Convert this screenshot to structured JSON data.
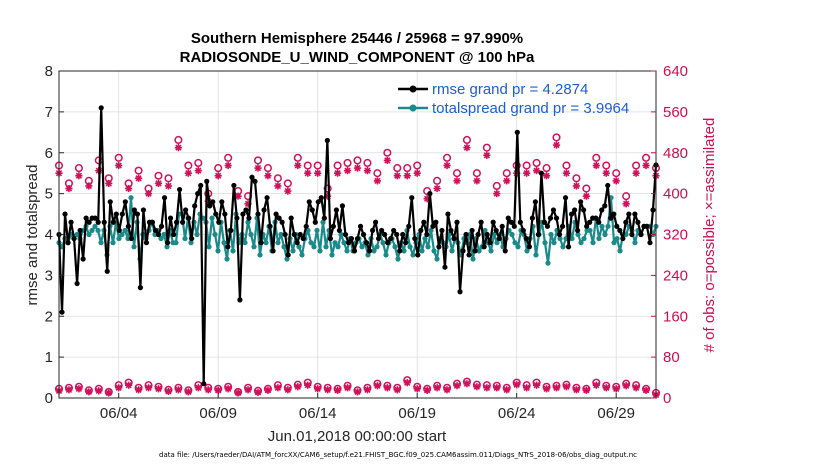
{
  "chart_data": {
    "type": "line",
    "title": "Southern Hemisphere 25446 / 25968 = 97.990%",
    "subtitle": "RADIOSONDE_U_WIND_COMPONENT @ 100 hPa",
    "xlabel": "Jun.01,2018 00:00:00 start",
    "ylabel": "rmse and totalspread",
    "ylabel_right": "# of obs: o=possible; ×=assimilated",
    "footer": "data file: /Users/raeder/DAI/ATM_forcXX/CAM6_setup/f.e21.FHIST_BGC.f09_025.CAM6assim.011/Diags_NTrS_2018-06/obs_diag_output.nc",
    "xlim": [
      1,
      31
    ],
    "ylim": [
      0,
      8
    ],
    "ylim_right": [
      0,
      640
    ],
    "x_ticks": [
      4,
      9,
      14,
      19,
      24,
      29
    ],
    "x_tick_labels": [
      "06/04",
      "06/09",
      "06/14",
      "06/19",
      "06/24",
      "06/29"
    ],
    "y_ticks": [
      0,
      1,
      2,
      3,
      4,
      5,
      6,
      7,
      8
    ],
    "y_ticks_right": [
      0,
      80,
      160,
      240,
      320,
      400,
      480,
      560,
      640
    ],
    "legend_position": "top-right",
    "series": [
      {
        "name": "rmse grand pr = 4.2874",
        "color": "#000000",
        "marker": "circle",
        "values": [
          4.0,
          2.1,
          4.5,
          3.8,
          4.3,
          3.9,
          2.8,
          4.1,
          3.4,
          4.4,
          4.3,
          4.4,
          4.4,
          4.3,
          7.1,
          4.3,
          3.1,
          4.8,
          4.3,
          4.5,
          4.1,
          4.5,
          4.8,
          4.2,
          3.9,
          4.6,
          4.5,
          2.7,
          4.6,
          3.8,
          4.3,
          4.3,
          4.1,
          4.0,
          4.2,
          4.9,
          3.8,
          4.4,
          4.0,
          4.3,
          5.1,
          4.3,
          4.6,
          4.4,
          3.9,
          4.7,
          5.0,
          5.2,
          0.35,
          5.3,
          4.7,
          4.8,
          4.5,
          4.3,
          4.8,
          4.5,
          3.7,
          4.1,
          5.2,
          4.4,
          2.4,
          4.5,
          4.6,
          4.4,
          5.4,
          5.3,
          4.5,
          3.8,
          4.6,
          4.9,
          4.2,
          3.6,
          4.5,
          4.4,
          4.3,
          4.0,
          3.5,
          4.4,
          4.0,
          3.8,
          4.0,
          3.9,
          4.2,
          4.8,
          4.6,
          4.3,
          4.8,
          4.9,
          4.4,
          6.3,
          3.9,
          4.2,
          4.6,
          4.1,
          4.7,
          4.0,
          3.8,
          3.9,
          3.6,
          3.9,
          4.2,
          4.0,
          3.8,
          3.6,
          4.1,
          4.3,
          3.9,
          4.1,
          4.0,
          3.8,
          3.9,
          4.1,
          4.0,
          3.6,
          4.0,
          3.8,
          4.2,
          4.9,
          3.9,
          3.5,
          4.1,
          4.3,
          4.0,
          5.0,
          4.2,
          4.3,
          3.7,
          4.1,
          3.2,
          4.5,
          4.1,
          3.9,
          4.3,
          2.6,
          3.6,
          4.0,
          3.5,
          4.1,
          3.6,
          4.0,
          4.3,
          3.7,
          4.0,
          3.8,
          4.3,
          4.1,
          3.9,
          4.2,
          3.6,
          4.4,
          4.3,
          4.2,
          6.5,
          4.3,
          4.1,
          3.9,
          3.7,
          4.4,
          4.8,
          4.0,
          5.5,
          4.3,
          4.2,
          4.4,
          4.6,
          4.4,
          4.0,
          4.2,
          4.9,
          3.7,
          4.5,
          4.6,
          4.1,
          4.8,
          4.6,
          4.2,
          4.3,
          4.4,
          4.4,
          4.3,
          4.6,
          4.7,
          5.2,
          4.4,
          4.5,
          4.2,
          4.1,
          3.9,
          4.3,
          4.5,
          4.0,
          4.5,
          4.3,
          4.0,
          4.2,
          4.2,
          3.8,
          4.6,
          5.7
        ]
      },
      {
        "name": "totalspread grand pr = 3.9964",
        "color": "#1a8a8a",
        "marker": "circle",
        "values": [
          3.8,
          3.7,
          3.9,
          3.8,
          4.0,
          3.9,
          4.0,
          3.9,
          4.1,
          4.2,
          4.0,
          4.1,
          4.2,
          4.1,
          3.8,
          4.1,
          3.5,
          4.2,
          3.8,
          4.3,
          3.9,
          4.0,
          4.1,
          3.9,
          4.9,
          3.7,
          4.3,
          3.4,
          4.0,
          3.9,
          4.1,
          4.3,
          4.0,
          4.1,
          3.9,
          4.0,
          3.7,
          4.1,
          3.8,
          3.8,
          4.5,
          4.5,
          3.9,
          4.4,
          3.8,
          4.3,
          4.0,
          4.5,
          4.4,
          4.3,
          3.7,
          4.4,
          4.0,
          3.6,
          4.3,
          3.8,
          3.4,
          4.1,
          3.6,
          4.5,
          3.8,
          4.0,
          3.8,
          4.3,
          4.0,
          3.7,
          4.4,
          3.5,
          4.0,
          3.8,
          4.2,
          3.6,
          4.3,
          3.8,
          4.0,
          3.7,
          3.4,
          3.9,
          3.6,
          4.0,
          3.7,
          3.5,
          3.9,
          4.1,
          3.8,
          3.7,
          4.1,
          3.6,
          4.3,
          3.7,
          4.1,
          3.5,
          3.8,
          3.7,
          4.0,
          3.8,
          3.6,
          3.9,
          3.6,
          3.8,
          3.9,
          3.7,
          3.8,
          3.5,
          3.9,
          3.6,
          3.7,
          4.0,
          3.8,
          3.5,
          3.8,
          3.9,
          3.7,
          3.4,
          3.8,
          3.6,
          4.1,
          3.7,
          3.5,
          3.8,
          4.0,
          3.6,
          3.9,
          3.7,
          4.1,
          3.6,
          3.4,
          3.9,
          3.8,
          3.7,
          4.0,
          3.6,
          3.9,
          3.8,
          3.5,
          3.9,
          3.8,
          4.0,
          3.4,
          3.9,
          3.6,
          3.7,
          4.1,
          3.8,
          3.6,
          4.0,
          3.8,
          4.0,
          3.7,
          3.9,
          4.1,
          4.0,
          3.8,
          3.7,
          4.1,
          4.0,
          3.6,
          3.9,
          4.2,
          3.5,
          4.0,
          4.3,
          3.8,
          3.3,
          4.0,
          3.8,
          4.1,
          3.9,
          3.7,
          3.9,
          4.2,
          3.9,
          4.3,
          4.0,
          3.8,
          3.9,
          4.1,
          4.1,
          3.8,
          4.4,
          3.9,
          4.2,
          4.0,
          4.2,
          4.9,
          3.8,
          3.9,
          3.6,
          4.0,
          4.0,
          4.2,
          4.1,
          3.8,
          4.1,
          4.0,
          4.2,
          4.2,
          4.2,
          4.0,
          4.2
        ]
      }
    ],
    "obs_possible_x": [
      1,
      1.5,
      2,
      2.5,
      3,
      3.5,
      4,
      4.5,
      5,
      5.5,
      6,
      6.5,
      7,
      7.5,
      8,
      8.5,
      9,
      9.5,
      10,
      10.5,
      11,
      11.5,
      12,
      12.5,
      13,
      13.5,
      14,
      14.5,
      15,
      15.5,
      16,
      16.5,
      17,
      17.5,
      18,
      18.5,
      19,
      19.5,
      20,
      20.5,
      21,
      21.5,
      22,
      22.5,
      23,
      23.5,
      24,
      24.5,
      25,
      25.5,
      26,
      26.5,
      27,
      27.5,
      28,
      28.5,
      29,
      29.5,
      30,
      30.5,
      31
    ],
    "obs_possible_high": [
      455,
      420,
      450,
      425,
      465,
      430,
      470,
      420,
      445,
      410,
      435,
      430,
      505,
      455,
      460,
      400,
      450,
      470,
      405,
      395,
      465,
      450,
      430,
      420,
      470,
      455,
      455,
      410,
      455,
      460,
      465,
      460,
      440,
      480,
      450,
      450,
      455,
      405,
      425,
      470,
      440,
      505,
      440,
      490,
      415,
      440,
      455,
      455,
      460,
      450,
      510,
      455,
      430,
      410,
      470,
      455,
      440,
      395,
      455,
      470,
      450
    ],
    "obs_assim_high": [
      440,
      410,
      435,
      415,
      445,
      420,
      455,
      410,
      430,
      400,
      420,
      415,
      490,
      440,
      445,
      385,
      435,
      455,
      395,
      380,
      450,
      435,
      415,
      405,
      455,
      440,
      440,
      395,
      440,
      445,
      450,
      445,
      425,
      465,
      435,
      435,
      440,
      390,
      410,
      455,
      425,
      490,
      425,
      475,
      400,
      425,
      440,
      440,
      445,
      435,
      495,
      440,
      415,
      395,
      455,
      440,
      425,
      380,
      440,
      455,
      435
    ],
    "obs_possible_low": [
      18,
      20,
      22,
      15,
      18,
      12,
      25,
      30,
      20,
      25,
      22,
      16,
      20,
      15,
      25,
      20,
      18,
      22,
      12,
      20,
      14,
      18,
      25,
      20,
      26,
      30,
      22,
      20,
      18,
      24,
      15,
      20,
      28,
      24,
      20,
      35,
      22,
      18,
      24,
      20,
      28,
      32,
      26,
      25,
      24,
      20,
      30,
      25,
      30,
      22,
      24,
      26,
      20,
      18,
      30,
      24,
      22,
      28,
      25,
      18,
      10
    ],
    "obs_assim_low": [
      14,
      16,
      18,
      12,
      14,
      10,
      20,
      25,
      16,
      20,
      18,
      13,
      16,
      12,
      20,
      16,
      15,
      18,
      10,
      16,
      11,
      15,
      20,
      16,
      22,
      25,
      18,
      16,
      15,
      20,
      12,
      16,
      24,
      20,
      16,
      30,
      18,
      15,
      20,
      16,
      24,
      28,
      22,
      20,
      20,
      16,
      26,
      20,
      25,
      18,
      20,
      22,
      16,
      15,
      25,
      20,
      18,
      24,
      20,
      15,
      6
    ]
  }
}
